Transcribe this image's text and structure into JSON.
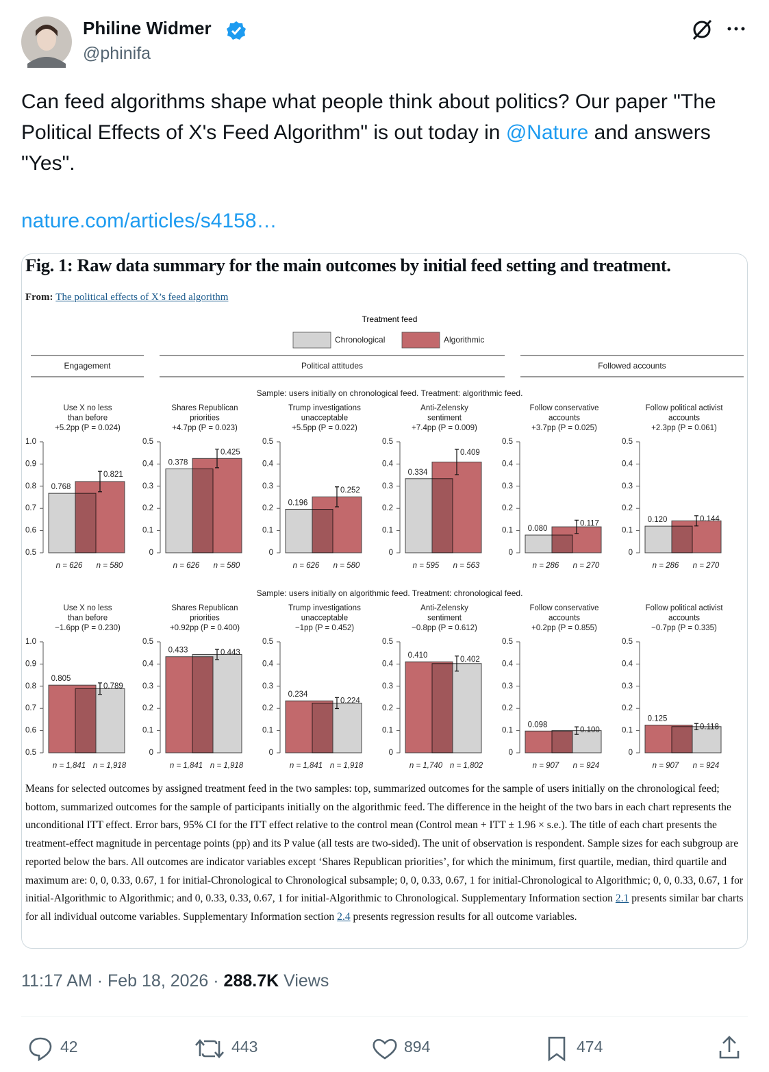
{
  "tweet": {
    "name": "Philine Widmer",
    "handle": "@phinifa",
    "text_parts": [
      "Can feed algorithms shape what people think about politics? Our paper \"The Political Effects of X's Feed Algorithm\" is out today in ",
      "@Nature",
      " and answers \"Yes\"."
    ],
    "link": "nature.com/articles/s4158…",
    "time": "11:17 AM · Feb 18, 2026 · ",
    "views": "288.7K",
    "views_label": " Views",
    "replies": "42",
    "reposts": "443",
    "likes": "894",
    "bookmarks": "474"
  },
  "figure": {
    "title": "Fig. 1: Raw data summary for the main outcomes by initial feed setting and treatment.",
    "from_label": "From: ",
    "from_link": "The political effects of X’s feed algorithm",
    "legend_title": "Treatment feed",
    "legend": [
      {
        "name": "Chronological",
        "color": "#d3d3d3"
      },
      {
        "name": "Algorithmic",
        "color": "#c2696c"
      }
    ],
    "groups": [
      "Engagement",
      "Political attitudes",
      "Followed accounts"
    ],
    "row_headers": [
      "Sample: users initially on chronological feed. Treatment: algorithmic feed.",
      "Sample: users initially on algorithmic feed. Treatment: chronological feed."
    ],
    "caption_parts": [
      "Means for selected outcomes by assigned treatment feed in the two samples: top, summarized outcomes for the sample of users initially on the chronological feed; bottom, summarized outcomes for the sample of participants initially on the algorithmic feed. The difference in the height of the two bars in each chart represents the unconditional ITT effect. Error bars, 95% CI for the ITT effect relative to the control mean (Control mean + ITT ± 1.96 × s.e.). The title of each chart presents the treatment-effect magnitude in percentage points (pp) and its P value (all tests are two-sided). The unit of observation is respondent. Sample sizes for each subgroup are reported below the bars. All outcomes are indicator variables except ‘Shares Republican priorities’, for which the minimum, first quartile, median, third quartile and maximum are: 0, 0, 0.33, 0.67, 1 for initial-Chronological to Chronological subsample; 0, 0, 0.33, 0.67, 1 for initial-Chronological to Algorithmic; 0, 0, 0.33, 0.67, 1 for initial-Algorithmic to Algorithmic; and 0, 0.33, 0.33, 0.67, 1 for initial-Algorithmic to Chronological. Supplementary Information section ",
      "2.1",
      " presents similar bar charts for all individual outcome variables. Supplementary Information section ",
      "2.4",
      " presents regression results for all outcome variables."
    ]
  },
  "chart_data": [
    {
      "type": "bar",
      "title": [
        "Use X no less",
        "than before",
        "+5.2pp (P = 0.024)"
      ],
      "categories": [
        "n = 626",
        "n = 580"
      ],
      "values": [
        0.768,
        0.821
      ],
      "value_labels": [
        "0.768",
        "0.821"
      ],
      "errors": [
        null,
        0.046
      ],
      "colors": [
        "#d3d3d3",
        "#c2696c"
      ],
      "ylim": [
        0.5,
        1
      ],
      "yticks": [
        0.5,
        0.6,
        0.7,
        0.8,
        0.9,
        {
          "value": 1,
          "label": "1.0"
        }
      ]
    },
    {
      "type": "bar",
      "title": [
        "Shares Republican",
        "priorities",
        "+4.7pp (P = 0.023)"
      ],
      "categories": [
        "n = 626",
        "n = 580"
      ],
      "values": [
        0.378,
        0.425
      ],
      "value_labels": [
        "0.378",
        "0.425"
      ],
      "errors": [
        null,
        0.042
      ],
      "colors": [
        "#d3d3d3",
        "#c2696c"
      ],
      "ylim": [
        0,
        0.5
      ],
      "yticks": [
        0,
        0.1,
        0.2,
        0.3,
        0.4,
        0.5
      ]
    },
    {
      "type": "bar",
      "title": [
        "Trump investigations",
        "unacceptable",
        "+5.5pp (P = 0.022)"
      ],
      "categories": [
        "n = 626",
        "n = 580"
      ],
      "values": [
        0.196,
        0.252
      ],
      "value_labels": [
        "0.196",
        "0.252"
      ],
      "errors": [
        null,
        0.045
      ],
      "colors": [
        "#d3d3d3",
        "#c2696c"
      ],
      "ylim": [
        0,
        0.5
      ],
      "yticks": [
        0,
        0.1,
        0.2,
        0.3,
        0.4,
        0.5
      ]
    },
    {
      "type": "bar",
      "title": [
        "Anti-Zelensky",
        "sentiment",
        "+7.4pp (P = 0.009)"
      ],
      "categories": [
        "n = 595",
        "n = 563"
      ],
      "values": [
        0.334,
        0.409
      ],
      "value_labels": [
        "0.334",
        "0.409"
      ],
      "errors": [
        null,
        0.057
      ],
      "colors": [
        "#d3d3d3",
        "#c2696c"
      ],
      "ylim": [
        0,
        0.5
      ],
      "yticks": [
        0,
        0.1,
        0.2,
        0.3,
        0.4,
        0.5
      ]
    },
    {
      "type": "bar",
      "title": [
        "Follow conservative",
        "accounts",
        "+3.7pp (P = 0.025)"
      ],
      "categories": [
        "n = 286",
        "n = 270"
      ],
      "values": [
        0.08,
        0.117
      ],
      "value_labels": [
        "0.080",
        "0.117"
      ],
      "errors": [
        null,
        0.03
      ],
      "colors": [
        "#d3d3d3",
        "#c2696c"
      ],
      "ylim": [
        0,
        0.5
      ],
      "yticks": [
        0,
        0.1,
        0.2,
        0.3,
        0.4,
        0.5
      ]
    },
    {
      "type": "bar",
      "title": [
        "Follow political activist",
        "accounts",
        "+2.3pp (P = 0.061)"
      ],
      "categories": [
        "n = 286",
        "n = 270"
      ],
      "values": [
        0.12,
        0.144
      ],
      "value_labels": [
        "0.120",
        "0.144"
      ],
      "errors": [
        null,
        0.023
      ],
      "colors": [
        "#d3d3d3",
        "#c2696c"
      ],
      "ylim": [
        0,
        0.5
      ],
      "yticks": [
        0,
        0.1,
        0.2,
        0.3,
        0.4,
        0.5
      ]
    },
    {
      "type": "bar",
      "title": [
        "Use X no less",
        "than before",
        "−1.6pp (P = 0.230)"
      ],
      "categories": [
        "n = 1,841",
        "n = 1,918"
      ],
      "values": [
        0.805,
        0.789
      ],
      "value_labels": [
        "0.805",
        "0.789"
      ],
      "errors": [
        null,
        0.026
      ],
      "colors": [
        "#c2696c",
        "#d3d3d3"
      ],
      "ylim": [
        0.5,
        1
      ],
      "yticks": [
        0.5,
        0.6,
        0.7,
        0.8,
        0.9,
        {
          "value": 1,
          "label": "1.0"
        }
      ]
    },
    {
      "type": "bar",
      "title": [
        "Shares Republican",
        "priorities",
        "+0.92pp (P = 0.400)"
      ],
      "categories": [
        "n = 1,841",
        "n = 1,918"
      ],
      "values": [
        0.433,
        0.443
      ],
      "value_labels": [
        "0.433",
        "0.443"
      ],
      "errors": [
        null,
        0.023
      ],
      "colors": [
        "#c2696c",
        "#d3d3d3"
      ],
      "ylim": [
        0,
        0.5
      ],
      "yticks": [
        0,
        0.1,
        0.2,
        0.3,
        0.4,
        0.5
      ]
    },
    {
      "type": "bar",
      "title": [
        "Trump investigations",
        "unacceptable",
        "−1pp (P = 0.452)"
      ],
      "categories": [
        "n = 1,841",
        "n = 1,918"
      ],
      "values": [
        0.234,
        0.224
      ],
      "value_labels": [
        "0.234",
        "0.224"
      ],
      "errors": [
        null,
        0.025
      ],
      "colors": [
        "#c2696c",
        "#d3d3d3"
      ],
      "ylim": [
        0,
        0.5
      ],
      "yticks": [
        0,
        0.1,
        0.2,
        0.3,
        0.4,
        0.5
      ]
    },
    {
      "type": "bar",
      "title": [
        "Anti-Zelensky",
        "sentiment",
        "−0.8pp (P = 0.612)"
      ],
      "categories": [
        "n = 1,740",
        "n = 1,802"
      ],
      "values": [
        0.41,
        0.402
      ],
      "value_labels": [
        "0.410",
        "0.402"
      ],
      "errors": [
        null,
        0.034
      ],
      "colors": [
        "#c2696c",
        "#d3d3d3"
      ],
      "ylim": [
        0,
        0.5
      ],
      "yticks": [
        0,
        0.1,
        0.2,
        0.3,
        0.4,
        0.5
      ]
    },
    {
      "type": "bar",
      "title": [
        "Follow conservative",
        "accounts",
        "+0.2pp (P = 0.855)"
      ],
      "categories": [
        "n = 907",
        "n = 924"
      ],
      "values": [
        0.098,
        0.1
      ],
      "value_labels": [
        "0.098",
        "0.100"
      ],
      "errors": [
        null,
        0.017
      ],
      "colors": [
        "#c2696c",
        "#d3d3d3"
      ],
      "ylim": [
        0,
        0.5
      ],
      "yticks": [
        0,
        0.1,
        0.2,
        0.3,
        0.4,
        0.5
      ]
    },
    {
      "type": "bar",
      "title": [
        "Follow political activist",
        "accounts",
        "−0.7pp (P = 0.335)"
      ],
      "categories": [
        "n = 907",
        "n = 924"
      ],
      "values": [
        0.125,
        0.118
      ],
      "value_labels": [
        "0.125",
        "0.118"
      ],
      "errors": [
        null,
        0.014
      ],
      "colors": [
        "#c2696c",
        "#d3d3d3"
      ],
      "ylim": [
        0,
        0.5
      ],
      "yticks": [
        0,
        0.1,
        0.2,
        0.3,
        0.4,
        0.5
      ]
    }
  ]
}
